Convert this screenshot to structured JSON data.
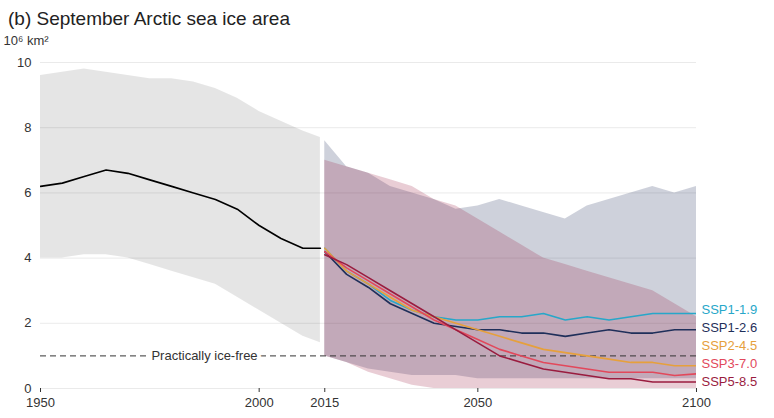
{
  "chart_data": {
    "type": "line",
    "title": "(b) September Arctic sea ice area",
    "y_label": "10⁶ km²",
    "xlim": [
      1950,
      2100
    ],
    "ylim": [
      0,
      10
    ],
    "xticks": [
      1950,
      2000,
      2015,
      2050,
      2100
    ],
    "yticks": [
      0,
      2,
      4,
      6,
      8,
      10
    ],
    "grid": true,
    "threshold": {
      "value": 1,
      "label": "Practically ice-free",
      "line_style": "dashed"
    },
    "series": [
      {
        "color": "#000000",
        "x": [
          1950,
          1955,
          1960,
          1965,
          1970,
          1975,
          1980,
          1985,
          1990,
          1995,
          2000,
          2005,
          2010,
          2014
        ],
        "values": [
          6.2,
          6.3,
          6.5,
          6.7,
          6.6,
          6.4,
          6.2,
          6.0,
          5.8,
          5.5,
          5.0,
          4.6,
          4.3,
          4.3
        ],
        "lower": [
          4.0,
          4.0,
          4.1,
          4.1,
          4.0,
          3.8,
          3.6,
          3.4,
          3.2,
          2.8,
          2.4,
          2.0,
          1.6,
          1.4
        ],
        "upper": [
          9.6,
          9.7,
          9.8,
          9.7,
          9.6,
          9.5,
          9.5,
          9.4,
          9.2,
          8.9,
          8.5,
          8.2,
          7.9,
          7.7
        ]
      },
      {
        "name": "SSP1-1.9",
        "color": "#27a7c9",
        "x": [
          2015,
          2020,
          2025,
          2030,
          2035,
          2040,
          2045,
          2050,
          2055,
          2060,
          2065,
          2070,
          2075,
          2080,
          2085,
          2090,
          2095,
          2100
        ],
        "values": [
          4.3,
          3.6,
          3.2,
          2.7,
          2.4,
          2.2,
          2.1,
          2.1,
          2.2,
          2.2,
          2.3,
          2.1,
          2.2,
          2.1,
          2.2,
          2.3,
          2.3,
          2.3
        ]
      },
      {
        "name": "SSP1-2.6",
        "color": "#1f2f5a",
        "x": [
          2015,
          2020,
          2025,
          2030,
          2035,
          2040,
          2045,
          2050,
          2055,
          2060,
          2065,
          2070,
          2075,
          2080,
          2085,
          2090,
          2095,
          2100
        ],
        "values": [
          4.2,
          3.5,
          3.1,
          2.6,
          2.3,
          2.0,
          1.9,
          1.8,
          1.8,
          1.7,
          1.7,
          1.6,
          1.7,
          1.8,
          1.7,
          1.7,
          1.8,
          1.8
        ],
        "lower": [
          1.0,
          0.8,
          0.6,
          0.5,
          0.4,
          0.4,
          0.4,
          0.3,
          0.3,
          0.3,
          0.3,
          0.3,
          0.3,
          0.3,
          0.3,
          0.3,
          0.3,
          0.3
        ],
        "upper": [
          7.6,
          6.8,
          6.6,
          6.2,
          6.0,
          5.8,
          5.5,
          5.6,
          5.8,
          5.6,
          5.4,
          5.2,
          5.6,
          5.8,
          6.0,
          6.2,
          6.0,
          6.2
        ]
      },
      {
        "name": "SSP2-4.5",
        "color": "#e6a03c",
        "x": [
          2015,
          2020,
          2025,
          2030,
          2035,
          2040,
          2045,
          2050,
          2055,
          2060,
          2065,
          2070,
          2075,
          2080,
          2085,
          2090,
          2095,
          2100
        ],
        "values": [
          4.3,
          3.6,
          3.2,
          2.8,
          2.4,
          2.2,
          2.0,
          1.8,
          1.6,
          1.4,
          1.2,
          1.1,
          1.0,
          0.9,
          0.8,
          0.8,
          0.7,
          0.7
        ]
      },
      {
        "name": "SSP3-7.0",
        "color": "#e2485b",
        "x": [
          2015,
          2020,
          2025,
          2030,
          2035,
          2040,
          2045,
          2050,
          2055,
          2060,
          2065,
          2070,
          2075,
          2080,
          2085,
          2090,
          2095,
          2100
        ],
        "values": [
          4.2,
          3.7,
          3.3,
          2.9,
          2.5,
          2.1,
          1.8,
          1.5,
          1.2,
          1.0,
          0.8,
          0.7,
          0.6,
          0.5,
          0.5,
          0.5,
          0.4,
          0.45
        ]
      },
      {
        "name": "SSP5-8.5",
        "color": "#9a1c3f",
        "x": [
          2015,
          2020,
          2025,
          2030,
          2035,
          2040,
          2045,
          2050,
          2055,
          2060,
          2065,
          2070,
          2075,
          2080,
          2085,
          2090,
          2095,
          2100
        ],
        "values": [
          4.1,
          3.8,
          3.4,
          3.0,
          2.6,
          2.2,
          1.8,
          1.4,
          1.0,
          0.8,
          0.6,
          0.5,
          0.4,
          0.3,
          0.3,
          0.2,
          0.2,
          0.2
        ],
        "lower": [
          1.0,
          0.8,
          0.5,
          0.3,
          0.1,
          0,
          0,
          0,
          0,
          0,
          0,
          0,
          0,
          0,
          0,
          0,
          0,
          0
        ],
        "upper": [
          7.0,
          6.8,
          6.6,
          6.4,
          6.2,
          5.8,
          5.6,
          5.2,
          4.8,
          4.4,
          4.0,
          3.8,
          3.6,
          3.4,
          3.2,
          3.0,
          2.6,
          2.2
        ]
      }
    ]
  }
}
